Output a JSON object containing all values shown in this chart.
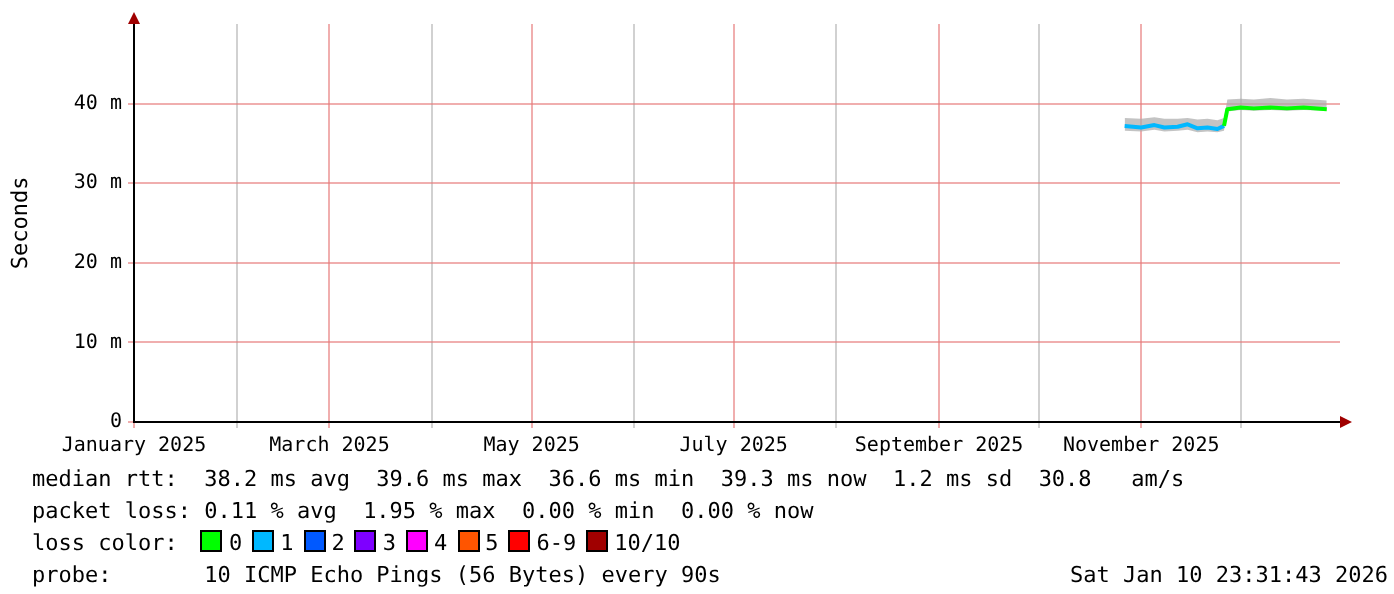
{
  "chart_data": {
    "type": "line",
    "ylabel": "Seconds",
    "x": [
      "2025-10-27",
      "2025-11-01",
      "2025-11-05",
      "2025-11-08",
      "2025-11-12",
      "2025-11-15",
      "2025-11-18",
      "2025-11-21",
      "2025-11-24",
      "2025-11-26",
      "2025-11-27",
      "2025-12-01",
      "2025-12-05",
      "2025-12-10",
      "2025-12-15",
      "2025-12-20",
      "2025-12-27"
    ],
    "series": [
      {
        "name": "0",
        "color": "#00ff00",
        "values": [
          null,
          null,
          null,
          null,
          null,
          null,
          null,
          null,
          null,
          37.2,
          39.3,
          39.5,
          39.4,
          39.5,
          39.4,
          39.5,
          39.3
        ],
        "lower": [
          null,
          null,
          null,
          null,
          null,
          null,
          null,
          null,
          null,
          36.6,
          39.0,
          39.2,
          39.1,
          39.2,
          39.1,
          39.2,
          39.1
        ],
        "upper": [
          null,
          null,
          null,
          null,
          null,
          null,
          null,
          null,
          null,
          38.2,
          40.5,
          40.6,
          40.5,
          40.7,
          40.5,
          40.6,
          40.4
        ]
      },
      {
        "name": "1",
        "color": "#00b8ff",
        "values": [
          37.2,
          37.0,
          37.3,
          37.0,
          37.1,
          37.4,
          36.9,
          37.0,
          36.8,
          37.2,
          null,
          null,
          null,
          null,
          null,
          null,
          null
        ],
        "lower": [
          36.6,
          36.5,
          36.7,
          36.5,
          36.6,
          36.7,
          36.4,
          36.5,
          36.4,
          36.6,
          null,
          null,
          null,
          null,
          null,
          null,
          null
        ],
        "upper": [
          38.2,
          38.1,
          38.3,
          38.1,
          38.1,
          38.2,
          38.0,
          38.1,
          37.9,
          38.2,
          null,
          null,
          null,
          null,
          null,
          null,
          null
        ]
      },
      {
        "name": "2",
        "color": "#0059ff",
        "values": [
          null,
          null,
          null,
          null,
          null,
          null,
          null,
          null,
          null,
          null,
          null,
          null,
          null,
          null,
          null,
          null,
          null
        ]
      },
      {
        "name": "3",
        "color": "#7e00ff",
        "values": [
          null,
          null,
          null,
          null,
          null,
          null,
          null,
          null,
          null,
          null,
          null,
          null,
          null,
          null,
          null,
          null,
          null
        ]
      },
      {
        "name": "4",
        "color": "#ff00ff",
        "values": [
          null,
          null,
          null,
          null,
          null,
          null,
          null,
          null,
          null,
          null,
          null,
          null,
          null,
          null,
          null,
          null,
          null
        ]
      },
      {
        "name": "5",
        "color": "#ff5500",
        "values": [
          null,
          null,
          null,
          null,
          null,
          null,
          null,
          null,
          null,
          null,
          null,
          null,
          null,
          null,
          null,
          null,
          null
        ]
      },
      {
        "name": "6-9",
        "color": "#ff0000",
        "values": [
          null,
          null,
          null,
          null,
          null,
          null,
          null,
          null,
          null,
          null,
          null,
          null,
          null,
          null,
          null,
          null,
          null
        ]
      },
      {
        "name": "10/10",
        "color": "#a00000",
        "values": [
          null,
          null,
          null,
          null,
          null,
          null,
          null,
          null,
          null,
          null,
          null,
          null,
          null,
          null,
          null,
          null,
          null
        ]
      }
    ],
    "legend_title": "loss color:",
    "legend": "bottom",
    "xlim": [
      "2025-01-01",
      "2025-12-31"
    ],
    "xticks": [
      {
        "value": "2025-01-01",
        "label": "January 2025"
      },
      {
        "value": "2025-02-01",
        "label": null
      },
      {
        "value": "2025-03-01",
        "label": "March 2025"
      },
      {
        "value": "2025-04-01",
        "label": null
      },
      {
        "value": "2025-05-01",
        "label": "May 2025"
      },
      {
        "value": "2025-06-01",
        "label": null
      },
      {
        "value": "2025-07-01",
        "label": "July 2025"
      },
      {
        "value": "2025-08-01",
        "label": null
      },
      {
        "value": "2025-09-01",
        "label": "September 2025"
      },
      {
        "value": "2025-10-01",
        "label": null
      },
      {
        "value": "2025-11-01",
        "label": "November 2025"
      },
      {
        "value": "2025-12-01",
        "label": null
      }
    ],
    "ylim": [
      0,
      50
    ],
    "yticks": [
      0,
      {
        "value": 10,
        "label": "10 m"
      },
      {
        "value": 20,
        "label": "20 m"
      },
      {
        "value": 30,
        "label": "30 m"
      },
      {
        "value": 40,
        "label": "40 m"
      }
    ],
    "grid": true,
    "annotations": [
      "median rtt:  38.2 ms avg  39.6 ms max  36.6 ms min  39.3 ms now  1.2 ms sd  30.8   am/s",
      "packet loss: 0.11 % avg  1.95 % max  0.00 % min  0.00 % now",
      "probe:       10 ICMP Echo Pings (56 Bytes) every 90s",
      "Sat Jan 10 23:31:43 2026"
    ]
  }
}
